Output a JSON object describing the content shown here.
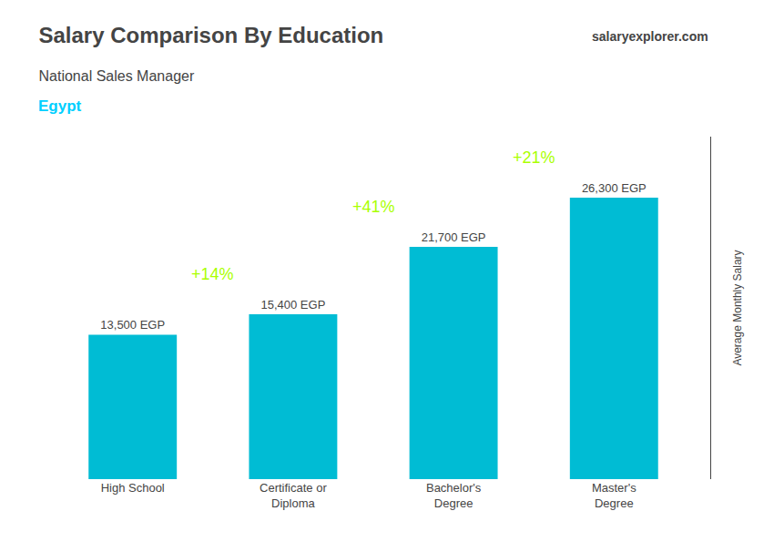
{
  "chart_data": {
    "type": "bar",
    "title": "Salary Comparison By Education",
    "subtitle": "National Sales Manager",
    "ylabel": "Average Monthly Salary",
    "categories": [
      "High School",
      "Certificate or\nDiploma",
      "Bachelor's\nDegree",
      "Master's\nDegree"
    ],
    "values": [
      13500,
      15400,
      21700,
      26300
    ],
    "value_labels": [
      "13,500 EGP",
      "15,400 EGP",
      "21,700 EGP",
      "26,300 EGP"
    ],
    "data_labels": true,
    "color": "#00bcd4",
    "ylim": [
      0,
      32000
    ],
    "grid": false,
    "tick_labels": "x",
    "annotations": [
      {
        "text": "Egypt",
        "color": "#00cfff"
      },
      {
        "text": "salaryexplorer.com"
      },
      {
        "text": "+14%",
        "color": "#aaff00",
        "from": 0,
        "to": 1
      },
      {
        "text": "+41%",
        "color": "#aaff00",
        "from": 1,
        "to": 2
      },
      {
        "text": "+21%",
        "color": "#aaff00",
        "from": 2,
        "to": 3
      }
    ]
  }
}
